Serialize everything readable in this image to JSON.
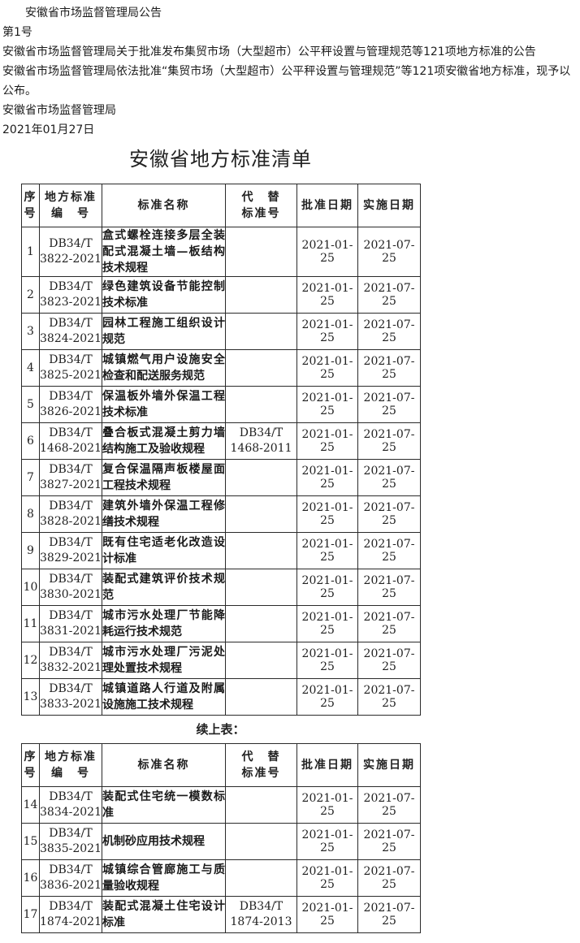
{
  "document": {
    "intro": [
      "安徽省市场监督管理局公告",
      "第1号",
      "安徽省市场监督管理局关于批准发布集贸市场（大型超市）公平秤设置与管理规范等121项地方标准的公告",
      "安徽省市场监督管理局依法批准“集贸市场（大型超市）公平秤设置与管理规范”等121项安徽省地方标准，现予以\n公布。",
      "安徽省市场监督管理局",
      "2021年01月27日"
    ],
    "list_title": "安徽省地方标准清单",
    "continuation_label": "续上表："
  },
  "standards": {
    "column_headers": [
      "序\n号",
      "地方标准\n编　号",
      "标准名称",
      "代　替\n标准号",
      "批准日期",
      "实施日期"
    ],
    "tables": [
      {
        "rows": [
          {
            "seq": "1",
            "code": "DB34/T\n3822-2021",
            "name": "盒式螺栓连接多层全装配式混凝土墙—板结构技术规程",
            "replaces": "",
            "approval_date": "2021-01-25",
            "implementation_date": "2021-07-25"
          },
          {
            "seq": "2",
            "code": "DB34/T\n3823-2021",
            "name": "绿色建筑设备节能控制技术标准",
            "replaces": "",
            "approval_date": "2021-01-25",
            "implementation_date": "2021-07-25"
          },
          {
            "seq": "3",
            "code": "DB34/T\n3824-2021",
            "name": "园林工程施工组织设计规范",
            "replaces": "",
            "approval_date": "2021-01-25",
            "implementation_date": "2021-07-25"
          },
          {
            "seq": "4",
            "code": "DB34/T\n3825-2021",
            "name": "城镇燃气用户设施安全检查和配送服务规范",
            "replaces": "",
            "approval_date": "2021-01-25",
            "implementation_date": "2021-07-25"
          },
          {
            "seq": "5",
            "code": "DB34/T\n3826-2021",
            "name": "保温板外墙外保温工程技术标准",
            "replaces": "",
            "approval_date": "2021-01-25",
            "implementation_date": "2021-07-25"
          },
          {
            "seq": "6",
            "code": "DB34/T\n1468-2021",
            "name": "叠合板式混凝土剪力墙结构施工及验收规程",
            "replaces": "DB34/T\n1468-2011",
            "approval_date": "2021-01-25",
            "implementation_date": "2021-07-25"
          },
          {
            "seq": "7",
            "code": "DB34/T\n3827-2021",
            "name": "复合保温隔声板楼屋面工程技术规程",
            "replaces": "",
            "approval_date": "2021-01-25",
            "implementation_date": "2021-07-25"
          },
          {
            "seq": "8",
            "code": "DB34/T\n3828-2021",
            "name": "建筑外墙外保温工程修缮技术规程",
            "replaces": "",
            "approval_date": "2021-01-25",
            "implementation_date": "2021-07-25"
          },
          {
            "seq": "9",
            "code": "DB34/T\n3829-2021",
            "name": "既有住宅适老化改造设计标准",
            "replaces": "",
            "approval_date": "2021-01-25",
            "implementation_date": "2021-07-25"
          },
          {
            "seq": "10",
            "code": "DB34/T\n3830-2021",
            "name": "装配式建筑评价技术规范",
            "replaces": "",
            "approval_date": "2021-01-25",
            "implementation_date": "2021-07-25"
          },
          {
            "seq": "11",
            "code": "DB34/T\n3831-2021",
            "name": "城市污水处理厂节能降耗运行技术规范",
            "replaces": "",
            "approval_date": "2021-01-25",
            "implementation_date": "2021-07-25"
          },
          {
            "seq": "12",
            "code": "DB34/T\n3832-2021",
            "name": "城市污水处理厂污泥处理处置技术规程",
            "replaces": "",
            "approval_date": "2021-01-25",
            "implementation_date": "2021-07-25"
          },
          {
            "seq": "13",
            "code": "DB34/T\n3833-2021",
            "name": "城镇道路人行道及附属设施施工技术规程",
            "replaces": "",
            "approval_date": "2021-01-25",
            "implementation_date": "2021-07-25"
          }
        ]
      },
      {
        "rows": [
          {
            "seq": "14",
            "code": "DB34/T\n3834-2021",
            "name": "装配式住宅统一模数标准",
            "replaces": "",
            "approval_date": "2021-01-25",
            "implementation_date": "2021-07-25"
          },
          {
            "seq": "15",
            "code": "DB34/T\n3835-2021",
            "name": "机制砂应用技术规程",
            "replaces": "",
            "approval_date": "2021-01-25",
            "implementation_date": "2021-07-25"
          },
          {
            "seq": "16",
            "code": "DB34/T\n3836-2021",
            "name": "城镇综合管廊施工与质量验收规程",
            "replaces": "",
            "approval_date": "2021-01-25",
            "implementation_date": "2021-07-25"
          },
          {
            "seq": "17",
            "code": "DB34/T\n1874-2021",
            "name": "装配式混凝土住宅设计标准",
            "replaces": "DB34/T\n1874-2013",
            "approval_date": "2021-01-25",
            "implementation_date": "2021-07-25"
          }
        ]
      }
    ]
  }
}
